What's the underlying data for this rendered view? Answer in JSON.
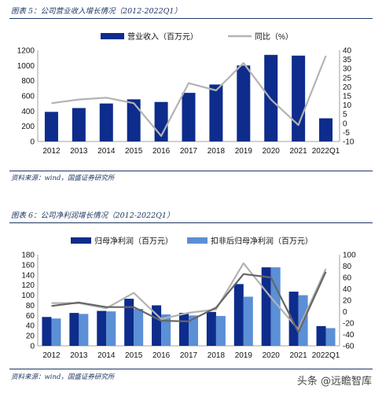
{
  "figures": [
    {
      "title": "图表 5：公司营业收入增长情况（2012-2022Q1）",
      "source": "资料来源：wind，国盛证券研究所"
    },
    {
      "title": "图表 6：公司净利润增长情况（2012-2022Q1）",
      "source": "资料来源：wind，国盛证券研究所"
    }
  ],
  "watermark": "头条 @远瞻智库",
  "colors": {
    "primary_bar": "#0d2c8c",
    "secondary_bar": "#5b8fd6",
    "line_grey": "#b3b3b3",
    "line_dark": "#666666",
    "accent": "#1f3864"
  },
  "chart_data": [
    {
      "type": "bar",
      "categories": [
        "2012",
        "2013",
        "2014",
        "2015",
        "2016",
        "2017",
        "2018",
        "2019",
        "2020",
        "2021",
        "2022Q1"
      ],
      "series": [
        {
          "name": "营业收入（百万元）",
          "kind": "bar",
          "axis": "left",
          "values": [
            390,
            440,
            500,
            555,
            520,
            640,
            750,
            1000,
            1140,
            1130,
            305
          ]
        },
        {
          "name": "同比（%）",
          "kind": "line",
          "axis": "right",
          "values": [
            11,
            13,
            14,
            11,
            -7,
            22,
            18,
            33,
            13,
            -1,
            37
          ]
        }
      ],
      "left_axis": {
        "ylim": [
          0,
          1200
        ],
        "ticks": [
          0,
          200,
          400,
          600,
          800,
          1000,
          1200
        ]
      },
      "right_axis": {
        "ylim": [
          -10,
          40
        ],
        "ticks": [
          -10,
          -5,
          0,
          5,
          10,
          15,
          20,
          25,
          30,
          35,
          40
        ]
      },
      "legend": "top",
      "grid": false
    },
    {
      "type": "bar",
      "categories": [
        "2012",
        "2013",
        "2014",
        "2015",
        "2016",
        "2017",
        "2018",
        "2019",
        "2020",
        "2021",
        "2022Q1"
      ],
      "series": [
        {
          "name": "归母净利润（百万元）",
          "kind": "bar",
          "axis": "left",
          "values": [
            57,
            65,
            69,
            93,
            80,
            65,
            67,
            122,
            155,
            107,
            39
          ]
        },
        {
          "name": "扣非后归母净利润（百万元）",
          "kind": "bar",
          "axis": "left",
          "values": [
            54,
            63,
            68,
            73,
            62,
            60,
            59,
            97,
            155,
            100,
            35
          ]
        },
        {
          "kind": "line",
          "axis": "right",
          "values": [
            15,
            15,
            6,
            33,
            -13,
            -2,
            4,
            85,
            25,
            -31,
            75
          ]
        },
        {
          "kind": "line",
          "axis": "right",
          "values": [
            10,
            16,
            8,
            8,
            -16,
            -17,
            7,
            66,
            60,
            -36,
            70
          ]
        }
      ],
      "left_axis": {
        "ylim": [
          0,
          180
        ],
        "ticks": [
          0,
          20,
          40,
          60,
          80,
          100,
          120,
          140,
          160,
          180
        ]
      },
      "right_axis": {
        "ylim": [
          -60,
          100
        ],
        "ticks": [
          -60,
          -40,
          -20,
          0,
          20,
          40,
          60,
          80,
          100
        ]
      },
      "legend": "top",
      "grid": false
    }
  ]
}
